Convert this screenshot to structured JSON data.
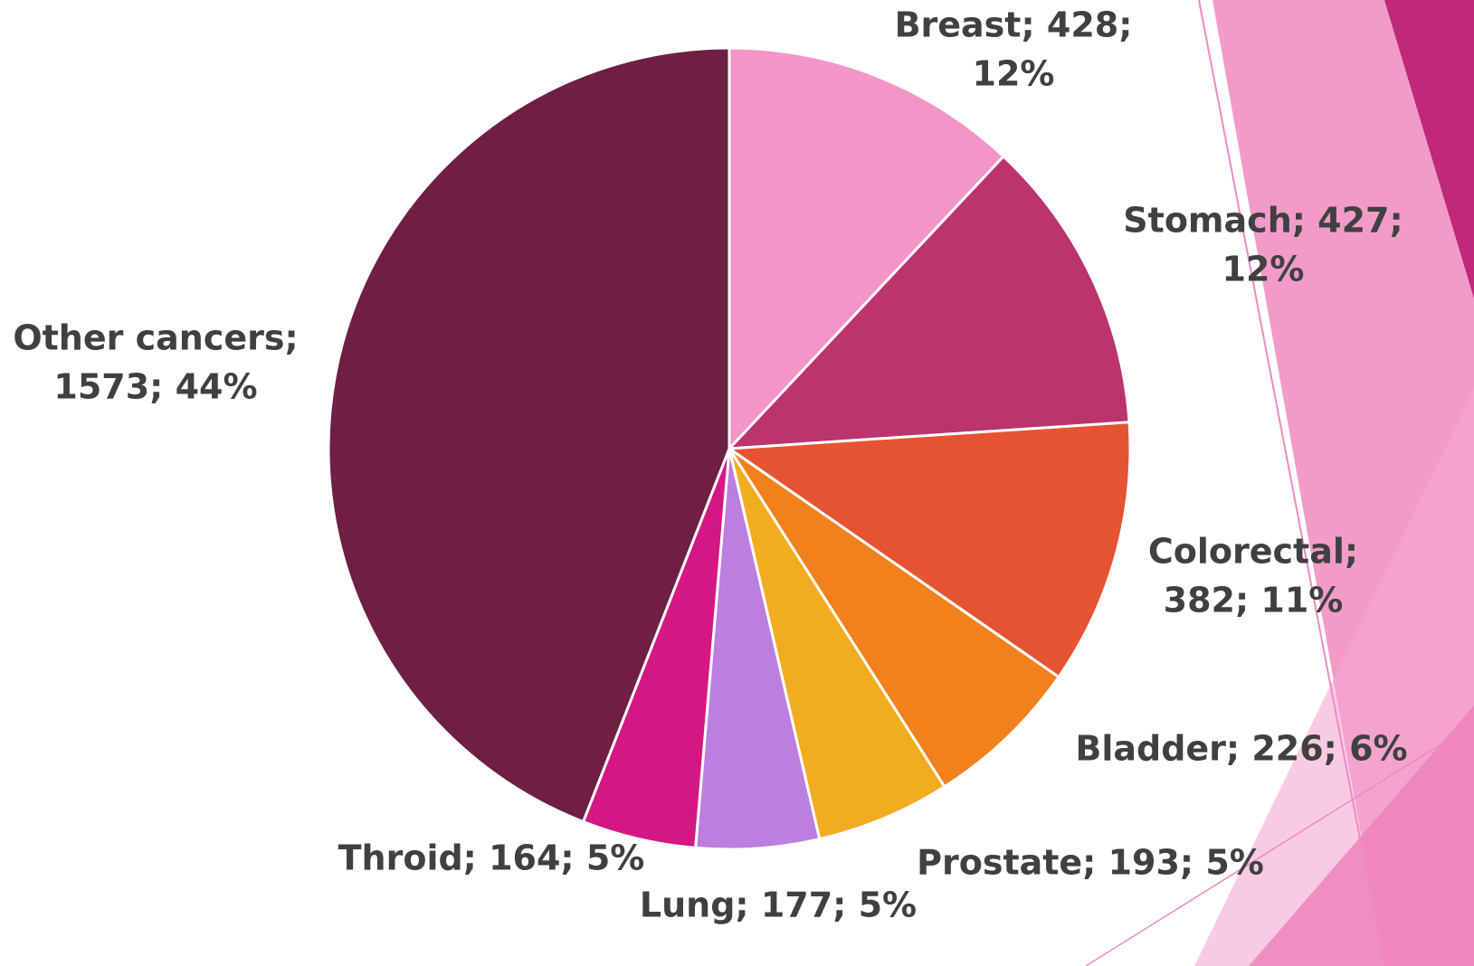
{
  "chart_data": {
    "type": "pie",
    "values": [
      428,
      427,
      382,
      226,
      193,
      177,
      164,
      1573
    ],
    "value_labels": [
      [
        "Breast; 428;",
        "12%"
      ],
      [
        "Stomach; 427;",
        "12%"
      ],
      [
        "Colorectal;",
        "382; 11%"
      ],
      [
        "Bladder; 226; 6%"
      ],
      [
        "Prostate; 193; 5%"
      ],
      [
        "Lung; 177; 5%"
      ],
      [
        "Throid; 164; 5%"
      ],
      [
        "Other cancers;",
        "1573; 44%"
      ]
    ],
    "colors": [
      "#f395c8",
      "#bb346e",
      "#e55332",
      "#f0811d",
      "#f2ac1f",
      "#bc7edf",
      "#d41783",
      "#6e1f43"
    ]
  }
}
